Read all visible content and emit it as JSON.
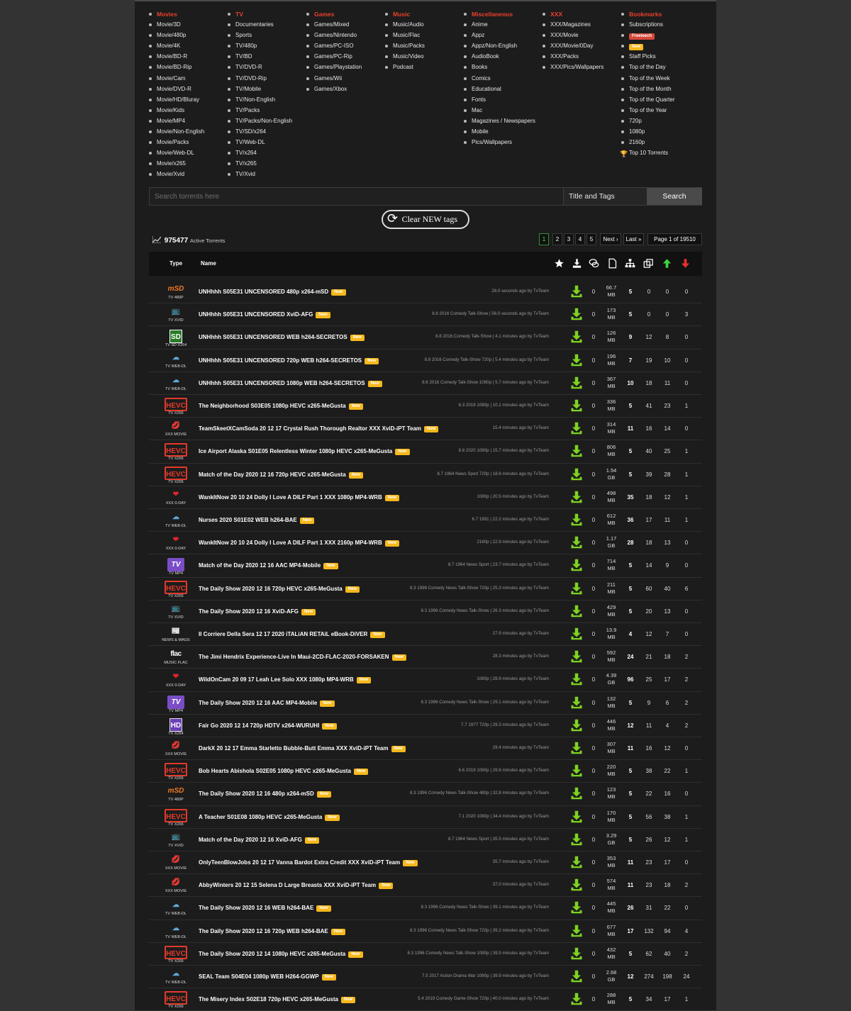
{
  "categories": [
    {
      "title": "Movies",
      "items": [
        "Movie/3D",
        "Movie/480p",
        "Movie/4K",
        "Movie/BD-R",
        "Movie/BD-Rip",
        "Movie/Cam",
        "Movie/DVD-R",
        "Movie/HD/Bluray",
        "Movie/Kids",
        "Movie/MP4",
        "Movie/Non-English",
        "Movie/Packs",
        "Movie/Web-DL",
        "Movie/x265",
        "Movie/Xvid"
      ]
    },
    {
      "title": "TV",
      "items": [
        "Documentaries",
        "Sports",
        "TV/480p",
        "TV/BD",
        "TV/DVD-R",
        "TV/DVD-Rip",
        "TV/Mobile",
        "TV/Non-English",
        "TV/Packs",
        "TV/Packs/Non-English",
        "TV/SD/x264",
        "TV/Web-DL",
        "TV/x264",
        "TV/x265",
        "TV/Xvid"
      ]
    },
    {
      "title": "Games",
      "items": [
        "Games/Mixed",
        "Games/Nintendo",
        "Games/PC-ISO",
        "Games/PC-Rip",
        "Games/Playstation",
        "Games/Wii",
        "Games/Xbox"
      ]
    },
    {
      "title": "Music",
      "items": [
        "Music/Audio",
        "Music/Flac",
        "Music/Packs",
        "Music/Video",
        "Podcast"
      ]
    },
    {
      "title": "Miscellaneous",
      "items": [
        "Anime",
        "Appz",
        "Appz/Non-English",
        "AudioBook",
        "Books",
        "Comics",
        "Educational",
        "Fonts",
        "Mac",
        "Magazines / Newspapers",
        "Mobile",
        "Pics/Wallpapers"
      ]
    },
    {
      "title": "XXX",
      "items": [
        "XXX/Magazines",
        "XXX/Movie",
        "XXX/Movie/0Day",
        "XXX/Packs",
        "XXX/Pics/Wallpapers"
      ]
    }
  ],
  "bookmarks": {
    "title": "Bookmarks",
    "subscriptions": "Subscriptions",
    "freeleech": "Freeleech",
    "new_tag": "New",
    "items": [
      "Staff Picks",
      "Top of the Day",
      "Top of the Week",
      "Top of the Month",
      "Top of the Quarter",
      "Top of the Year",
      "720p",
      "1080p",
      "2160p"
    ],
    "top10": "Top 10 Torrents"
  },
  "search": {
    "placeholder": "Search torrents here",
    "mode": "Title and Tags",
    "button": "Search"
  },
  "clear_tags": "Clear NEW tags",
  "active": {
    "count": "975477",
    "label": "Active Torrents"
  },
  "pager": {
    "pages": [
      "1",
      "2",
      "3",
      "4",
      "5"
    ],
    "next": "Next ›",
    "last": "Last »",
    "page_info": "Page 1 of 19510"
  },
  "table_header": {
    "type": "Type",
    "name": "Name"
  },
  "colors": {
    "accent": "#e8402c",
    "new": "#f6b81c",
    "freeleech": "#d8473a",
    "download": "#7ed321",
    "up": "#3bd43b",
    "down": "#e3302b"
  },
  "new_tag": "New",
  "rows": [
    {
      "icon": "msd",
      "cat": "TV 480P",
      "name": "UNHhhh S05E31 UNCENSORED 480p x264-mSD",
      "info": "28.0 seconds ago by TvTeam",
      "c0": "0",
      "size": [
        "66.7",
        "MB"
      ],
      "s": "5",
      "a": "0",
      "b": "0",
      "d": "0"
    },
    {
      "icon": "tv",
      "cat": "TV XVID",
      "name": "UNHhhh S05E31 UNCENSORED XviD-AFG",
      "info": "8.8 2016 Comedy Talk-Show | 56.0 seconds ago by TvTeam",
      "c0": "0",
      "size": [
        "173",
        "MB"
      ],
      "s": "5",
      "a": "0",
      "b": "0",
      "d": "3"
    },
    {
      "icon": "sd",
      "cat": "TV SD X264",
      "name": "UNHhhh S05E31 UNCENSORED WEB h264-SECRETOS",
      "info": "8.8 2016 Comedy Talk-Show | 4.1 minutes ago by TvTeam",
      "c0": "0",
      "size": [
        "126",
        "MB"
      ],
      "s": "9",
      "a": "12",
      "b": "8",
      "d": "0"
    },
    {
      "icon": "cloud",
      "cat": "TV WEB-DL",
      "name": "UNHhhh S05E31 UNCENSORED 720p WEB h264-SECRETOS",
      "info": "8.8 2016 Comedy Talk-Show 720p | 5.4 minutes ago by TvTeam",
      "c0": "0",
      "size": [
        "196",
        "MB"
      ],
      "s": "7",
      "a": "19",
      "b": "10",
      "d": "0"
    },
    {
      "icon": "cloud",
      "cat": "TV WEB-DL",
      "name": "UNHhhh S05E31 UNCENSORED 1080p WEB h264-SECRETOS",
      "info": "8.8 2016 Comedy Talk-Show 1080p | 5.7 minutes ago by TvTeam",
      "c0": "0",
      "size": [
        "367",
        "MB"
      ],
      "s": "10",
      "a": "18",
      "b": "11",
      "d": "0"
    },
    {
      "icon": "hevc",
      "cat": "TV X265",
      "name": "The Neighborhood S03E05 1080p HEVC x265-MeGusta",
      "info": "6.3 2018 1080p | 10.1 minutes ago by TvTeam",
      "c0": "0",
      "size": [
        "336",
        "MB"
      ],
      "s": "5",
      "a": "41",
      "b": "23",
      "d": "1"
    },
    {
      "icon": "lips",
      "cat": "XXX MOVIE",
      "name": "TeamSkeetXCamSoda 20 12 17 Crystal Rush Thorough Realtor XXX XviD-iPT Team",
      "info": "15.4 minutes ago by TvTeam",
      "c0": "0",
      "size": [
        "314",
        "MB"
      ],
      "s": "11",
      "a": "16",
      "b": "14",
      "d": "0"
    },
    {
      "icon": "hevc",
      "cat": "TV X265",
      "name": "Ice Airport Alaska S01E05 Relentless Winter 1080p HEVC x265-MeGusta",
      "info": "8.8 2020 1080p | 15.7 minutes ago by TvTeam",
      "c0": "0",
      "size": [
        "806",
        "MB"
      ],
      "s": "5",
      "a": "40",
      "b": "25",
      "d": "1"
    },
    {
      "icon": "hevc",
      "cat": "TV X265",
      "name": "Match of the Day 2020 12 16 720p HEVC x265-MeGusta",
      "info": "8.7 1964 News Sport 720p | 18.6 minutes ago by TvTeam",
      "c0": "0",
      "size": [
        "1.54",
        "GB"
      ],
      "s": "5",
      "a": "39",
      "b": "28",
      "d": "1"
    },
    {
      "icon": "heart",
      "cat": "XXX 0-DAY",
      "name": "WankItNow 20 10 24 Dolly I Love A DILF Part 1 XXX 1080p MP4-WRB",
      "info": "1080p | 20.5 minutes ago by TvTeam",
      "c0": "0",
      "size": [
        "498",
        "MB"
      ],
      "s": "35",
      "a": "18",
      "b": "12",
      "d": "1"
    },
    {
      "icon": "cloud",
      "cat": "TV WEB-DL",
      "name": "Nurses 2020 S01E02 WEB h264-BAE",
      "info": "6.7 1991 | 22.2 minutes ago by TvTeam",
      "c0": "0",
      "size": [
        "612",
        "MB"
      ],
      "s": "36",
      "a": "17",
      "b": "11",
      "d": "1"
    },
    {
      "icon": "heart",
      "cat": "XXX 0-DAY",
      "name": "WankItNow 20 10 24 Dolly I Love A DILF Part 1 XXX 2160p MP4-WRB",
      "info": "2160p | 22.9 minutes ago by TvTeam",
      "c0": "0",
      "size": [
        "1.17",
        "GB"
      ],
      "s": "28",
      "a": "18",
      "b": "13",
      "d": "0"
    },
    {
      "icon": "tvw",
      "cat": "TV MP4",
      "name": "Match of the Day 2020 12 16 AAC MP4-Mobile",
      "info": "8.7 1964 News Sport | 23.7 minutes ago by TvTeam",
      "c0": "0",
      "size": [
        "714",
        "MB"
      ],
      "s": "5",
      "a": "14",
      "b": "9",
      "d": "0"
    },
    {
      "icon": "hevc",
      "cat": "TV X265",
      "name": "The Daily Show 2020 12 16 720p HEVC x265-MeGusta",
      "info": "8.3 1996 Comedy News Talk-Show 720p | 25.3 minutes ago by TvTeam",
      "c0": "0",
      "size": [
        "211",
        "MB"
      ],
      "s": "5",
      "a": "60",
      "b": "40",
      "d": "6"
    },
    {
      "icon": "tv",
      "cat": "TV XVID",
      "name": "The Daily Show 2020 12 16 XviD-AFG",
      "info": "8.3 1996 Comedy News Talk-Show | 26.3 minutes ago by TvTeam",
      "c0": "0",
      "size": [
        "429",
        "MB"
      ],
      "s": "5",
      "a": "20",
      "b": "13",
      "d": "0"
    },
    {
      "icon": "news",
      "cat": "NEWS & MAGS",
      "name": "Il Corriere Della Sera 12 17 2020 iTALiAN RETAiL eBook-DiVER",
      "info": "27.9 minutes ago by TvTeam",
      "c0": "0",
      "size": [
        "13.9",
        "MB"
      ],
      "s": "4",
      "a": "12",
      "b": "7",
      "d": "0"
    },
    {
      "icon": "flac",
      "cat": "MUSIC FLAC",
      "name": "The Jimi Hendrix Experience-Live In Maui-2CD-FLAC-2020-FORSAKEN",
      "info": "28.3 minutes ago by TvTeam",
      "c0": "0",
      "size": [
        "592",
        "MB"
      ],
      "s": "24",
      "a": "21",
      "b": "18",
      "d": "2"
    },
    {
      "icon": "heart",
      "cat": "XXX 0-DAY",
      "name": "WildOnCam 20 09 17 Leah Lee Solo XXX 1080p MP4-WRB",
      "info": "1080p | 28.9 minutes ago by TvTeam",
      "c0": "0",
      "size": [
        "4.39",
        "GB"
      ],
      "s": "96",
      "a": "25",
      "b": "17",
      "d": "2"
    },
    {
      "icon": "tvw",
      "cat": "TV MP4",
      "name": "The Daily Show 2020 12 16 AAC MP4-Mobile",
      "info": "8.3 1996 Comedy News Talk-Show | 29.1 minutes ago by TvTeam",
      "c0": "0",
      "size": [
        "132",
        "MB"
      ],
      "s": "5",
      "a": "9",
      "b": "6",
      "d": "2"
    },
    {
      "icon": "hd",
      "cat": "TV X264",
      "name": "Fair Go 2020 12 14 720p HDTV x264-WURUHI",
      "info": "7.7 1977 720p | 29.3 minutes ago by TvTeam",
      "c0": "0",
      "size": [
        "446",
        "MB"
      ],
      "s": "12",
      "a": "11",
      "b": "4",
      "d": "2"
    },
    {
      "icon": "lips",
      "cat": "XXX MOVIE",
      "name": "DarkX 20 12 17 Emma Starletto Bubble-Butt Emma XXX XviD-iPT Team",
      "info": "29.4 minutes ago by TvTeam",
      "c0": "0",
      "size": [
        "307",
        "MB"
      ],
      "s": "11",
      "a": "16",
      "b": "12",
      "d": "0"
    },
    {
      "icon": "hevc",
      "cat": "TV X265",
      "name": "Bob Hearts Abishola S02E05 1080p HEVC x265-MeGusta",
      "info": "6.6 2019 1080p | 29.8 minutes ago by TvTeam",
      "c0": "0",
      "size": [
        "220",
        "MB"
      ],
      "s": "5",
      "a": "38",
      "b": "22",
      "d": "1"
    },
    {
      "icon": "msd",
      "cat": "TV 480P",
      "name": "The Daily Show 2020 12 16 480p x264-mSD",
      "info": "8.3 1996 Comedy News Talk-Show 480p | 32.8 minutes ago by TvTeam",
      "c0": "0",
      "size": [
        "123",
        "MB"
      ],
      "s": "5",
      "a": "22",
      "b": "16",
      "d": "0"
    },
    {
      "icon": "hevc",
      "cat": "TV X265",
      "name": "A Teacher S01E08 1080p HEVC x265-MeGusta",
      "info": "7.1 2020 1080p | 34.4 minutes ago by TvTeam",
      "c0": "0",
      "size": [
        "170",
        "MB"
      ],
      "s": "5",
      "a": "56",
      "b": "38",
      "d": "1"
    },
    {
      "icon": "tv",
      "cat": "TV XVID",
      "name": "Match of the Day 2020 12 16 XviD-AFG",
      "info": "8.7 1964 News Sport | 35.5 minutes ago by TvTeam",
      "c0": "0",
      "size": [
        "3.29",
        "GB"
      ],
      "s": "5",
      "a": "26",
      "b": "12",
      "d": "1"
    },
    {
      "icon": "lips",
      "cat": "XXX MOVIE",
      "name": "OnlyTeenBlowJobs 20 12 17 Vanna Bardot Extra Credit XXX XviD-iPT Team",
      "info": "35.7 minutes ago by TvTeam",
      "c0": "0",
      "size": [
        "353",
        "MB"
      ],
      "s": "11",
      "a": "23",
      "b": "17",
      "d": "0"
    },
    {
      "icon": "lips",
      "cat": "XXX MOVIE",
      "name": "AbbyWinters 20 12 15 Selena D Large Breasts XXX XviD-iPT Team",
      "info": "37.0 minutes ago by TvTeam",
      "c0": "0",
      "size": [
        "574",
        "MB"
      ],
      "s": "11",
      "a": "23",
      "b": "18",
      "d": "2"
    },
    {
      "icon": "cloud",
      "cat": "TV WEB-DL",
      "name": "The Daily Show 2020 12 16 WEB h264-BAE",
      "info": "8.3 1996 Comedy News Talk-Show | 39.1 minutes ago by TvTeam",
      "c0": "0",
      "size": [
        "445",
        "MB"
      ],
      "s": "26",
      "a": "31",
      "b": "22",
      "d": "0"
    },
    {
      "icon": "cloud",
      "cat": "TV WEB-DL",
      "name": "The Daily Show 2020 12 16 720p WEB h264-BAE",
      "info": "8.3 1996 Comedy News Talk-Show 720p | 39.2 minutes ago by TvTeam",
      "c0": "0",
      "size": [
        "677",
        "MB"
      ],
      "s": "17",
      "a": "132",
      "b": "94",
      "d": "4"
    },
    {
      "icon": "hevc",
      "cat": "TV X265",
      "name": "The Daily Show 2020 12 14 1080p HEVC x265-MeGusta",
      "info": "8.3 1996 Comedy News Talk-Show 1080p | 39.5 minutes ago by TvTeam",
      "c0": "0",
      "size": [
        "432",
        "MB"
      ],
      "s": "5",
      "a": "62",
      "b": "40",
      "d": "2"
    },
    {
      "icon": "cloud",
      "cat": "TV WEB-DL",
      "name": "SEAL Team S04E04 1080p WEB H264-GGWP",
      "info": "7.5 2017 Action Drama War 1080p | 39.9 minutes ago by TvTeam",
      "c0": "0",
      "size": [
        "2.68",
        "GB"
      ],
      "s": "12",
      "a": "274",
      "b": "198",
      "d": "24"
    },
    {
      "icon": "hevc",
      "cat": "TV X265",
      "name": "The Misery Index S02E18 720p HEVC x265-MeGusta",
      "info": "5.4 2019 Comedy Game-Show 720p | 40.0 minutes ago by TvTeam",
      "c0": "0",
      "size": [
        "288",
        "MB"
      ],
      "s": "5",
      "a": "34",
      "b": "17",
      "d": "1"
    }
  ]
}
